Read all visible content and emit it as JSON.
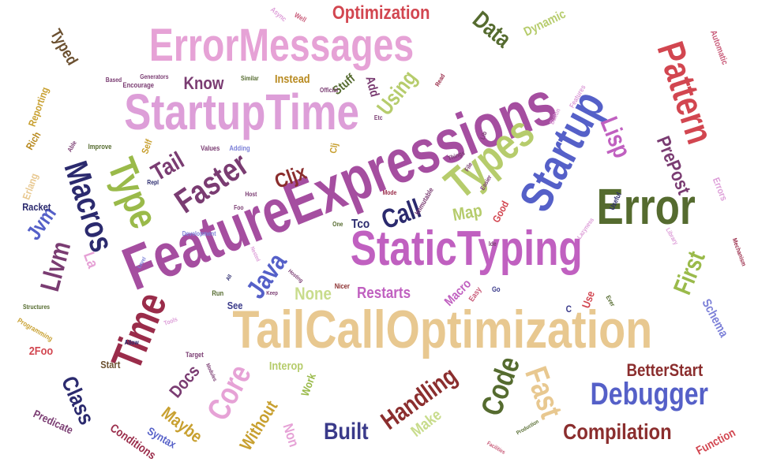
{
  "colors": {
    "magenta": "#a54ea0",
    "orchid": "#c060c0",
    "lavender": "#dd9ed8",
    "pink": "#e6a2d6",
    "plum": "#7a3c72",
    "wine": "#9a2c4a",
    "maroon": "#8b2e2e",
    "red": "#d24650",
    "rose": "#c85a78",
    "navy": "#2b2a6e",
    "blue": "#5560c8",
    "periwinkle": "#7c80d8",
    "indigo": "#3a3a8a",
    "olive": "#556b2f",
    "lime": "#9aba4a",
    "sage": "#b6cc6c",
    "lightlime": "#c8dc8c",
    "tan": "#e8c890",
    "gold": "#b88a20",
    "brown": "#6b5030",
    "mustard": "#c8a030"
  },
  "words": [
    {
      "text": "FeatureExpressions",
      "color": "magenta"
    },
    {
      "text": "TailCallOptimization",
      "color": "tan"
    },
    {
      "text": "StaticTyping",
      "color": "orchid"
    },
    {
      "text": "StartupTime",
      "color": "lavender"
    },
    {
      "text": "ErrorMessages",
      "color": "pink"
    },
    {
      "text": "Startup",
      "color": "blue"
    },
    {
      "text": "Types",
      "color": "sage"
    },
    {
      "text": "Error",
      "color": "olive"
    },
    {
      "text": "Pattern",
      "color": "red"
    },
    {
      "text": "Time",
      "color": "wine"
    },
    {
      "text": "Type",
      "color": "lime"
    },
    {
      "text": "Faster",
      "color": "plum"
    },
    {
      "text": "Macros",
      "color": "navy"
    },
    {
      "text": "Debugger",
      "color": "blue"
    },
    {
      "text": "Code",
      "color": "olive"
    },
    {
      "text": "Handling",
      "color": "maroon"
    },
    {
      "text": "Compilation",
      "color": "maroon"
    },
    {
      "text": "Optimization",
      "color": "red"
    },
    {
      "text": "BetterStart",
      "color": "maroon"
    },
    {
      "text": "Built",
      "color": "indigo"
    },
    {
      "text": "Fast",
      "color": "tan"
    },
    {
      "text": "Core",
      "color": "pink"
    },
    {
      "text": "Class",
      "color": "navy"
    },
    {
      "text": "Java",
      "color": "blue"
    },
    {
      "text": "Llvm",
      "color": "plum"
    },
    {
      "text": "Lisp",
      "color": "orchid"
    },
    {
      "text": "First",
      "color": "lime"
    },
    {
      "text": "Call",
      "color": "navy"
    },
    {
      "text": "Tail",
      "color": "plum"
    },
    {
      "text": "Data",
      "color": "olive"
    },
    {
      "text": "PrePost",
      "color": "plum"
    },
    {
      "text": "Cljx",
      "color": "maroon"
    },
    {
      "text": "Know",
      "color": "plum"
    },
    {
      "text": "Using",
      "color": "sage"
    },
    {
      "text": "Jvm",
      "color": "blue"
    },
    {
      "text": "Map",
      "color": "sage"
    },
    {
      "text": "Maybe",
      "color": "mustard"
    },
    {
      "text": "Docs",
      "color": "plum"
    },
    {
      "text": "Without",
      "color": "mustard"
    },
    {
      "text": "None",
      "color": "lightlime"
    },
    {
      "text": "Restarts",
      "color": "orchid"
    },
    {
      "text": "Make",
      "color": "lightlime"
    },
    {
      "text": "Non",
      "color": "pink"
    },
    {
      "text": "Typed",
      "color": "brown"
    },
    {
      "text": "Dynamic",
      "color": "sage"
    },
    {
      "text": "Instead",
      "color": "gold"
    },
    {
      "text": "Stuff",
      "color": "olive"
    },
    {
      "text": "Add",
      "color": "plum"
    },
    {
      "text": "Tco",
      "color": "navy"
    },
    {
      "text": "La",
      "color": "pink"
    },
    {
      "text": "Macro",
      "color": "orchid"
    },
    {
      "text": "Interop",
      "color": "sage"
    },
    {
      "text": "Schema",
      "color": "periwinkle"
    },
    {
      "text": "Function",
      "color": "red"
    },
    {
      "text": "Conditions",
      "color": "wine"
    },
    {
      "text": "Syntax",
      "color": "blue"
    },
    {
      "text": "Predicate",
      "color": "plum"
    },
    {
      "text": "Work",
      "color": "lime"
    },
    {
      "text": "2Foo",
      "color": "red"
    },
    {
      "text": "Start",
      "color": "brown"
    },
    {
      "text": "See",
      "color": "indigo"
    },
    {
      "text": "Use",
      "color": "red"
    },
    {
      "text": "Good",
      "color": "red"
    },
    {
      "text": "Racket",
      "color": "navy"
    },
    {
      "text": "Erlang",
      "color": "tan"
    },
    {
      "text": "Rich",
      "color": "gold"
    },
    {
      "text": "Reporting",
      "color": "mustard"
    },
    {
      "text": "Self",
      "color": "mustard"
    },
    {
      "text": "Errors",
      "color": "lavender"
    },
    {
      "text": "Automatic",
      "color": "rose"
    },
    {
      "text": "Easy",
      "color": "rose"
    },
    {
      "text": "Clj",
      "color": "mustard"
    },
    {
      "text": "C",
      "color": "indigo"
    },
    {
      "text": "Encourage",
      "color": "plum"
    },
    {
      "text": "Generators",
      "color": "plum"
    },
    {
      "text": "Based",
      "color": "plum"
    },
    {
      "text": "Read",
      "color": "wine"
    },
    {
      "text": "Async",
      "color": "lavender"
    },
    {
      "text": "Well",
      "color": "rose"
    },
    {
      "text": "Similar",
      "color": "olive"
    },
    {
      "text": "Official",
      "color": "plum"
    },
    {
      "text": "Nicer",
      "color": "maroon"
    },
    {
      "text": "Etc",
      "color": "plum"
    },
    {
      "text": "Lib",
      "color": "plum"
    },
    {
      "text": "Features",
      "color": "lavender"
    },
    {
      "text": "Builtin",
      "color": "lavender"
    },
    {
      "text": "Things",
      "color": "plum"
    },
    {
      "text": "Values",
      "color": "plum"
    },
    {
      "text": "Adding",
      "color": "periwinkle"
    },
    {
      "text": "Improve",
      "color": "olive"
    },
    {
      "text": "Able",
      "color": "plum"
    },
    {
      "text": "Mode",
      "color": "wine"
    },
    {
      "text": "Immutable",
      "color": "plum"
    },
    {
      "text": "Useful",
      "color": "navy"
    },
    {
      "text": "Repl",
      "color": "navy"
    },
    {
      "text": "Foo",
      "color": "plum"
    },
    {
      "text": "Host",
      "color": "plum"
    },
    {
      "text": "Development",
      "color": "periwinkle"
    },
    {
      "text": "One",
      "color": "olive"
    },
    {
      "text": "Ide",
      "color": "plum"
    },
    {
      "text": "Lazyness",
      "color": "lavender"
    },
    {
      "text": "Library",
      "color": "lavender"
    },
    {
      "text": "Nested",
      "color": "lavender"
    },
    {
      "text": "Hosting",
      "color": "plum"
    },
    {
      "text": "Level",
      "color": "periwinkle"
    },
    {
      "text": "All",
      "color": "navy"
    },
    {
      "text": "Run",
      "color": "olive"
    },
    {
      "text": "Keep",
      "color": "plum"
    },
    {
      "text": "Go",
      "color": "indigo"
    },
    {
      "text": "Ever",
      "color": "olive"
    },
    {
      "text": "Mechanism",
      "color": "wine"
    },
    {
      "text": "Structures",
      "color": "olive"
    },
    {
      "text": "Programming",
      "color": "mustard"
    },
    {
      "text": "Tools",
      "color": "lavender"
    },
    {
      "text": "Allow",
      "color": "navy"
    },
    {
      "text": "Target",
      "color": "plum"
    },
    {
      "text": "Modules",
      "color": "plum"
    },
    {
      "text": "Facilities",
      "color": "rose"
    },
    {
      "text": "Production",
      "color": "olive"
    },
    {
      "text": "Easier",
      "color": "plum"
    },
    {
      "text": "File",
      "color": "plum"
    }
  ]
}
